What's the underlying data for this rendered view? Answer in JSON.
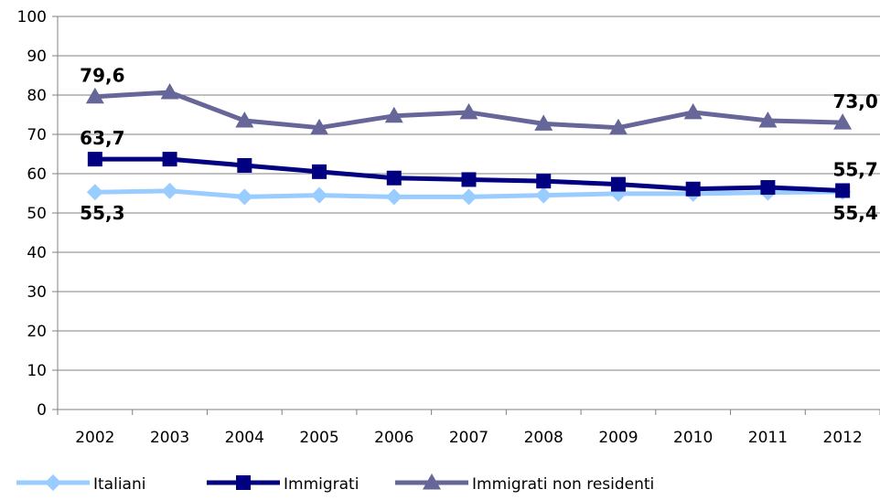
{
  "chart_data": {
    "type": "line",
    "categories": [
      "2002",
      "2003",
      "2004",
      "2005",
      "2006",
      "2007",
      "2008",
      "2009",
      "2010",
      "2011",
      "2012"
    ],
    "ylim": [
      0,
      100
    ],
    "y_ticks": [
      0,
      10,
      20,
      30,
      40,
      50,
      60,
      70,
      80,
      90,
      100
    ],
    "grid": "horizontal",
    "legend_position": "bottom",
    "series": [
      {
        "name": "Italiani",
        "color": "#99CCFF",
        "marker": "diamond",
        "values": [
          55.3,
          55.6,
          54.1,
          54.5,
          54.1,
          54.1,
          54.5,
          54.9,
          54.9,
          55.2,
          55.4
        ]
      },
      {
        "name": "Immigrati",
        "color": "#000080",
        "marker": "square",
        "values": [
          63.7,
          63.7,
          62.1,
          60.5,
          58.9,
          58.5,
          58.1,
          57.3,
          56.1,
          56.5,
          55.7
        ]
      },
      {
        "name": "Immigrati non residenti",
        "color": "#666699",
        "marker": "triangle",
        "values": [
          79.6,
          80.7,
          73.5,
          71.7,
          74.7,
          75.6,
          72.7,
          71.7,
          75.6,
          73.5,
          73.0
        ]
      }
    ],
    "annotations": [
      {
        "text": "79,6",
        "series": 2,
        "index": 0,
        "pos": "above"
      },
      {
        "text": "73,0",
        "series": 2,
        "index": 10,
        "pos": "above"
      },
      {
        "text": "63,7",
        "series": 1,
        "index": 0,
        "pos": "above"
      },
      {
        "text": "55,7",
        "series": 1,
        "index": 10,
        "pos": "above"
      },
      {
        "text": "55,3",
        "series": 0,
        "index": 0,
        "pos": "below"
      },
      {
        "text": "55,4",
        "series": 0,
        "index": 10,
        "pos": "below"
      }
    ]
  }
}
